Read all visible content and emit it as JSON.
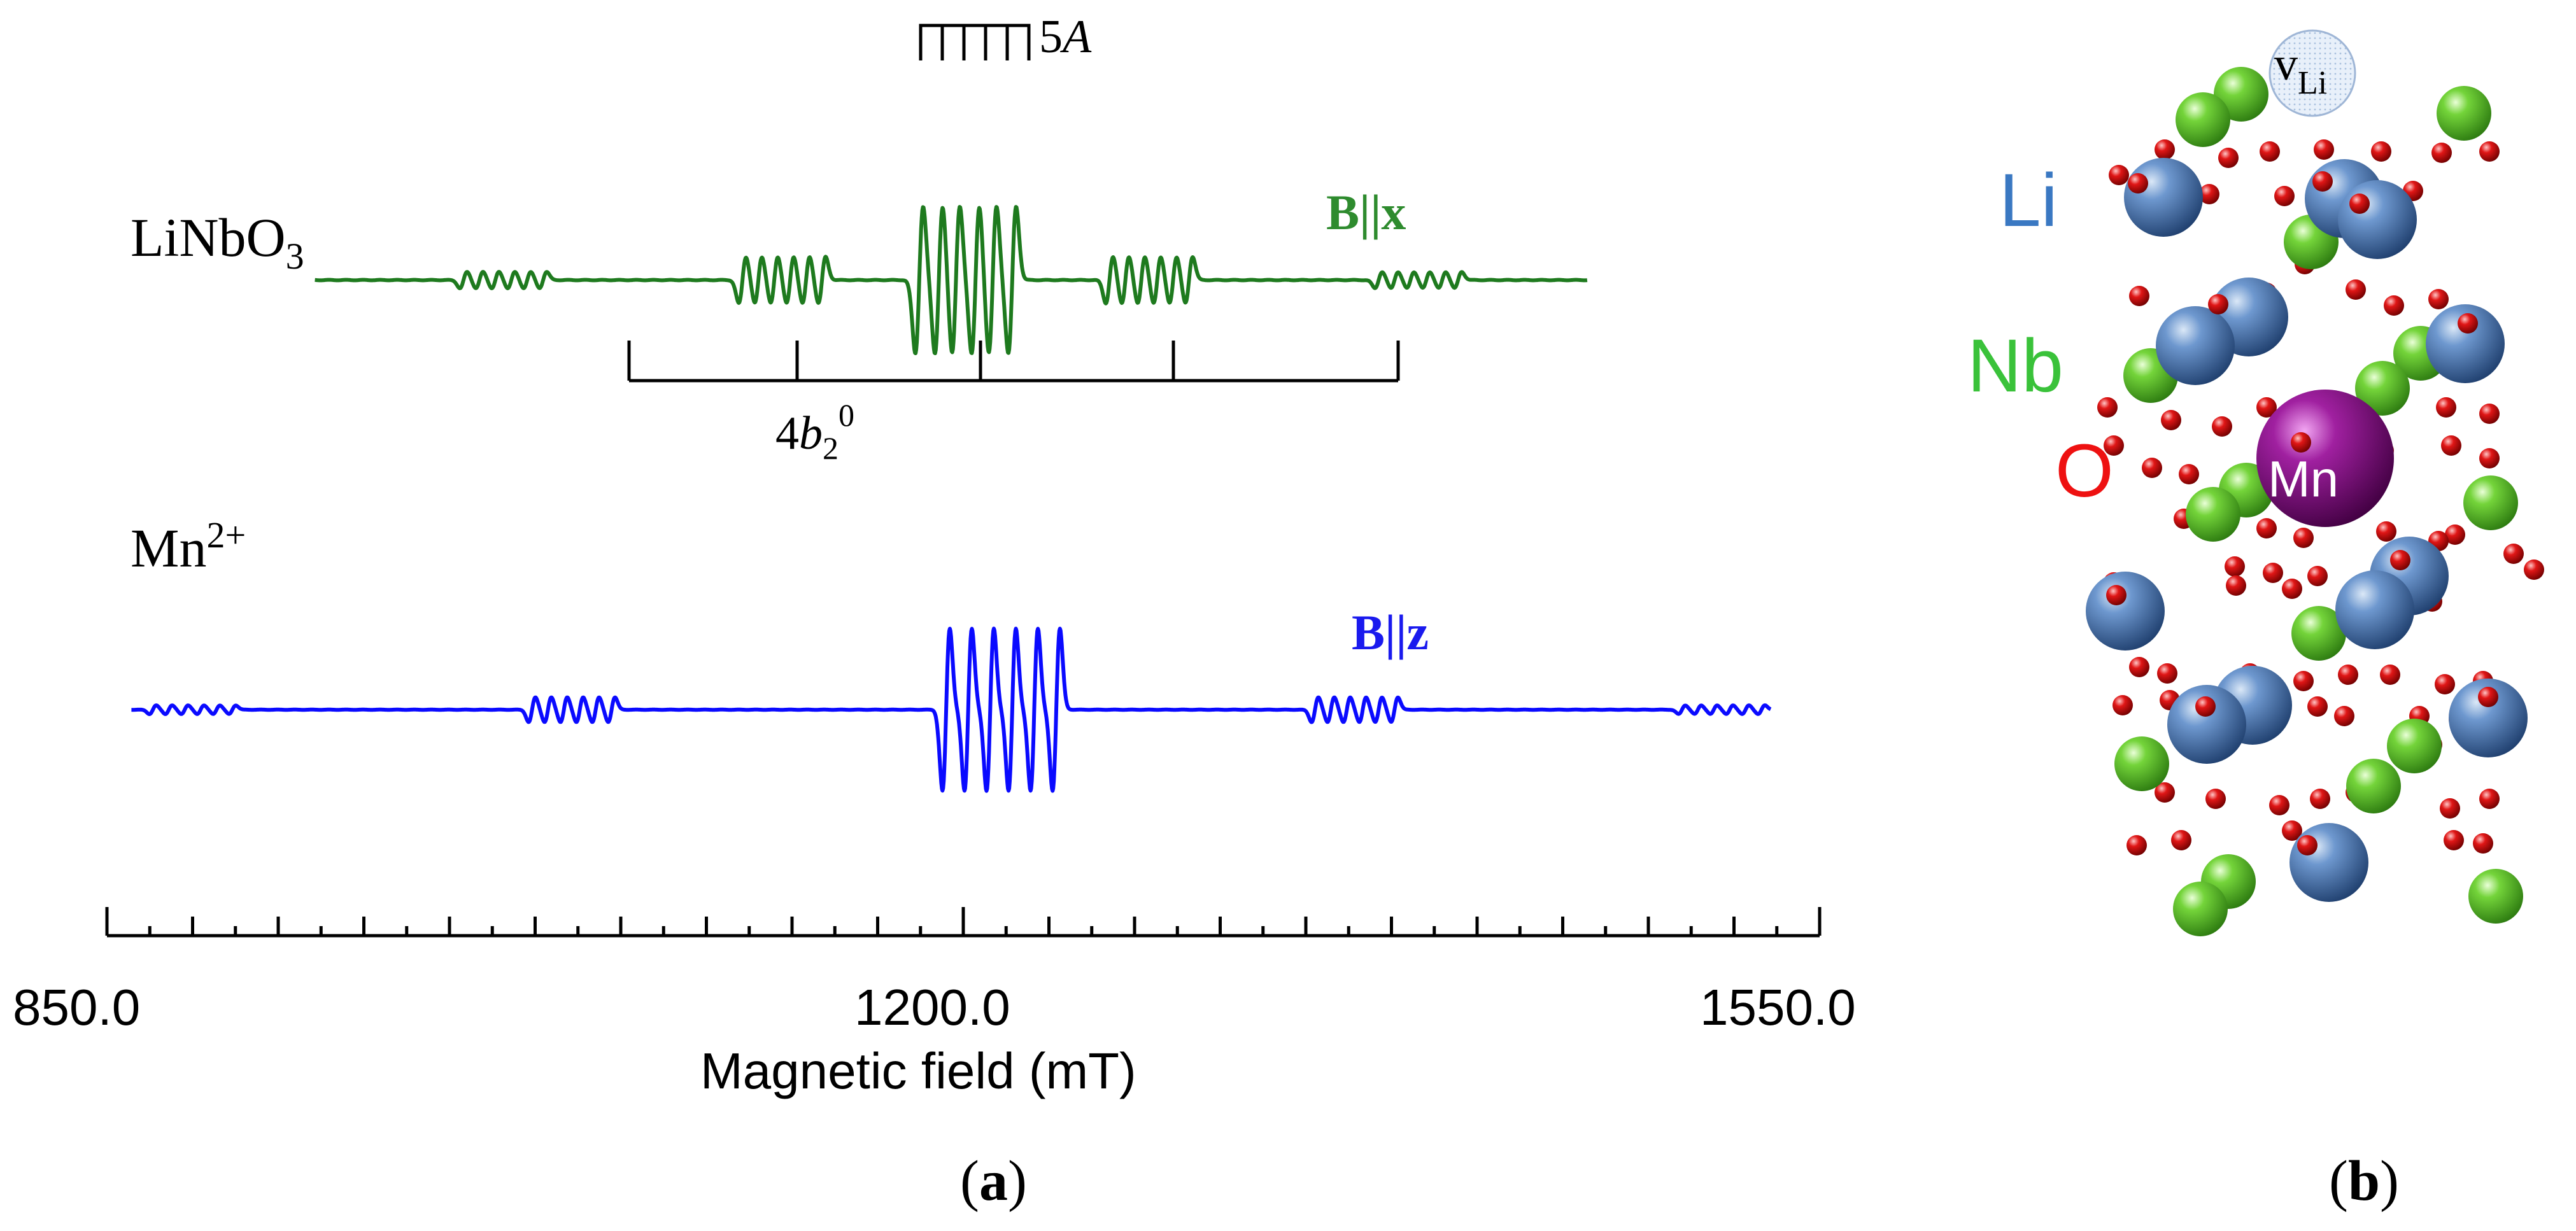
{
  "panel_a": {
    "label_open": "(",
    "label_letter": "a",
    "label_close": ")",
    "compound_main": "LiNbO",
    "compound_sub": "3",
    "ion_main": "Mn",
    "ion_sup": "2+",
    "orient_x": "B||x",
    "orient_z": "B||z",
    "hfs_label_num": "5",
    "hfs_label_sym": "A",
    "fs_label_num": "4",
    "fs_label_sym": "b",
    "fs_label_sub": "2",
    "fs_label_sup": "0",
    "colors": {
      "x_trace": "#1e7a1e",
      "z_trace": "#0a0aff",
      "x_text": "#2e8b2e",
      "z_text": "#1a1aee"
    }
  },
  "chart_data": {
    "type": "line",
    "xlabel": "Magnetic field (mT)",
    "xlim": [
      850.0,
      1550.0
    ],
    "xticks": [
      "850.0",
      "1200.0",
      "1550.0"
    ],
    "series": [
      {
        "name": "B||x",
        "center_hyperfine_fields": [
          1182,
          1190,
          1197,
          1205,
          1212,
          1220
        ],
        "fine_structure_groups_center": [
          1012,
          1126,
          1276,
          1386
        ]
      },
      {
        "name": "B||z",
        "center_hyperfine_fields": [
          1193,
          1202,
          1211,
          1220,
          1229,
          1238
        ],
        "fine_structure_groups_center": [
          885,
          1040,
          1360,
          1510
        ]
      }
    ]
  },
  "panel_b": {
    "label_open": "(",
    "label_letter": "b",
    "label_close": ")",
    "vacancy_main": "v",
    "vacancy_sub": "Li",
    "legend_li": "Li",
    "legend_nb": "Nb",
    "legend_o": "O",
    "mn_label": "Mn",
    "colors": {
      "li": "#3a78c2",
      "nb": "#3ac23a",
      "o": "#ee1111",
      "mn": "#8a1a8a"
    }
  }
}
